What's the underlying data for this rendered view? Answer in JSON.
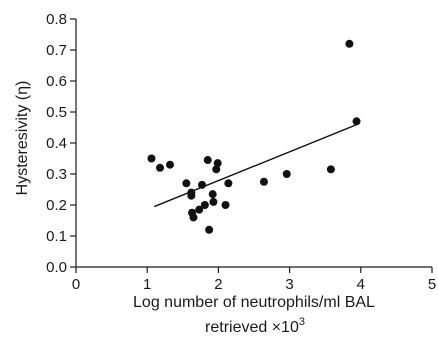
{
  "chart_data": {
    "type": "scatter",
    "xlabel_line1": "Log number of neutrophils/ml BAL",
    "xlabel_line2": "retrieved ×10",
    "xlabel_superscript": "3",
    "ylabel": "Hysteresivity (η)",
    "xlim": [
      0,
      5
    ],
    "ylim": [
      0,
      0.8
    ],
    "x_ticks": [
      0,
      1,
      2,
      3,
      4,
      5
    ],
    "x_tick_labels": [
      "0",
      "1",
      "2",
      "3",
      "4",
      "5"
    ],
    "y_ticks": [
      0,
      0.1,
      0.2,
      0.3,
      0.4,
      0.5,
      0.6,
      0.7,
      0.8
    ],
    "y_tick_labels": [
      "0.0",
      "0.1",
      "0.2",
      "0.3",
      "0.4",
      "0.5",
      "0.6",
      "0.7",
      "0.8"
    ],
    "grid": false,
    "legend": "none",
    "points": [
      {
        "x": 1.06,
        "y": 0.35
      },
      {
        "x": 1.18,
        "y": 0.32
      },
      {
        "x": 1.32,
        "y": 0.33
      },
      {
        "x": 1.55,
        "y": 0.27
      },
      {
        "x": 1.62,
        "y": 0.24
      },
      {
        "x": 1.62,
        "y": 0.23
      },
      {
        "x": 1.63,
        "y": 0.175
      },
      {
        "x": 1.65,
        "y": 0.16
      },
      {
        "x": 1.73,
        "y": 0.185
      },
      {
        "x": 1.77,
        "y": 0.265
      },
      {
        "x": 1.81,
        "y": 0.2
      },
      {
        "x": 1.85,
        "y": 0.345
      },
      {
        "x": 1.87,
        "y": 0.12
      },
      {
        "x": 1.92,
        "y": 0.235
      },
      {
        "x": 1.93,
        "y": 0.21
      },
      {
        "x": 1.97,
        "y": 0.315
      },
      {
        "x": 1.99,
        "y": 0.335
      },
      {
        "x": 2.1,
        "y": 0.2
      },
      {
        "x": 2.14,
        "y": 0.27
      },
      {
        "x": 2.64,
        "y": 0.275
      },
      {
        "x": 2.96,
        "y": 0.3
      },
      {
        "x": 3.58,
        "y": 0.315
      },
      {
        "x": 3.84,
        "y": 0.72
      },
      {
        "x": 3.94,
        "y": 0.47
      }
    ],
    "trend_line": {
      "x": [
        1.1,
        3.95
      ],
      "y": [
        0.195,
        0.46
      ]
    },
    "marker_color": "#111111"
  }
}
